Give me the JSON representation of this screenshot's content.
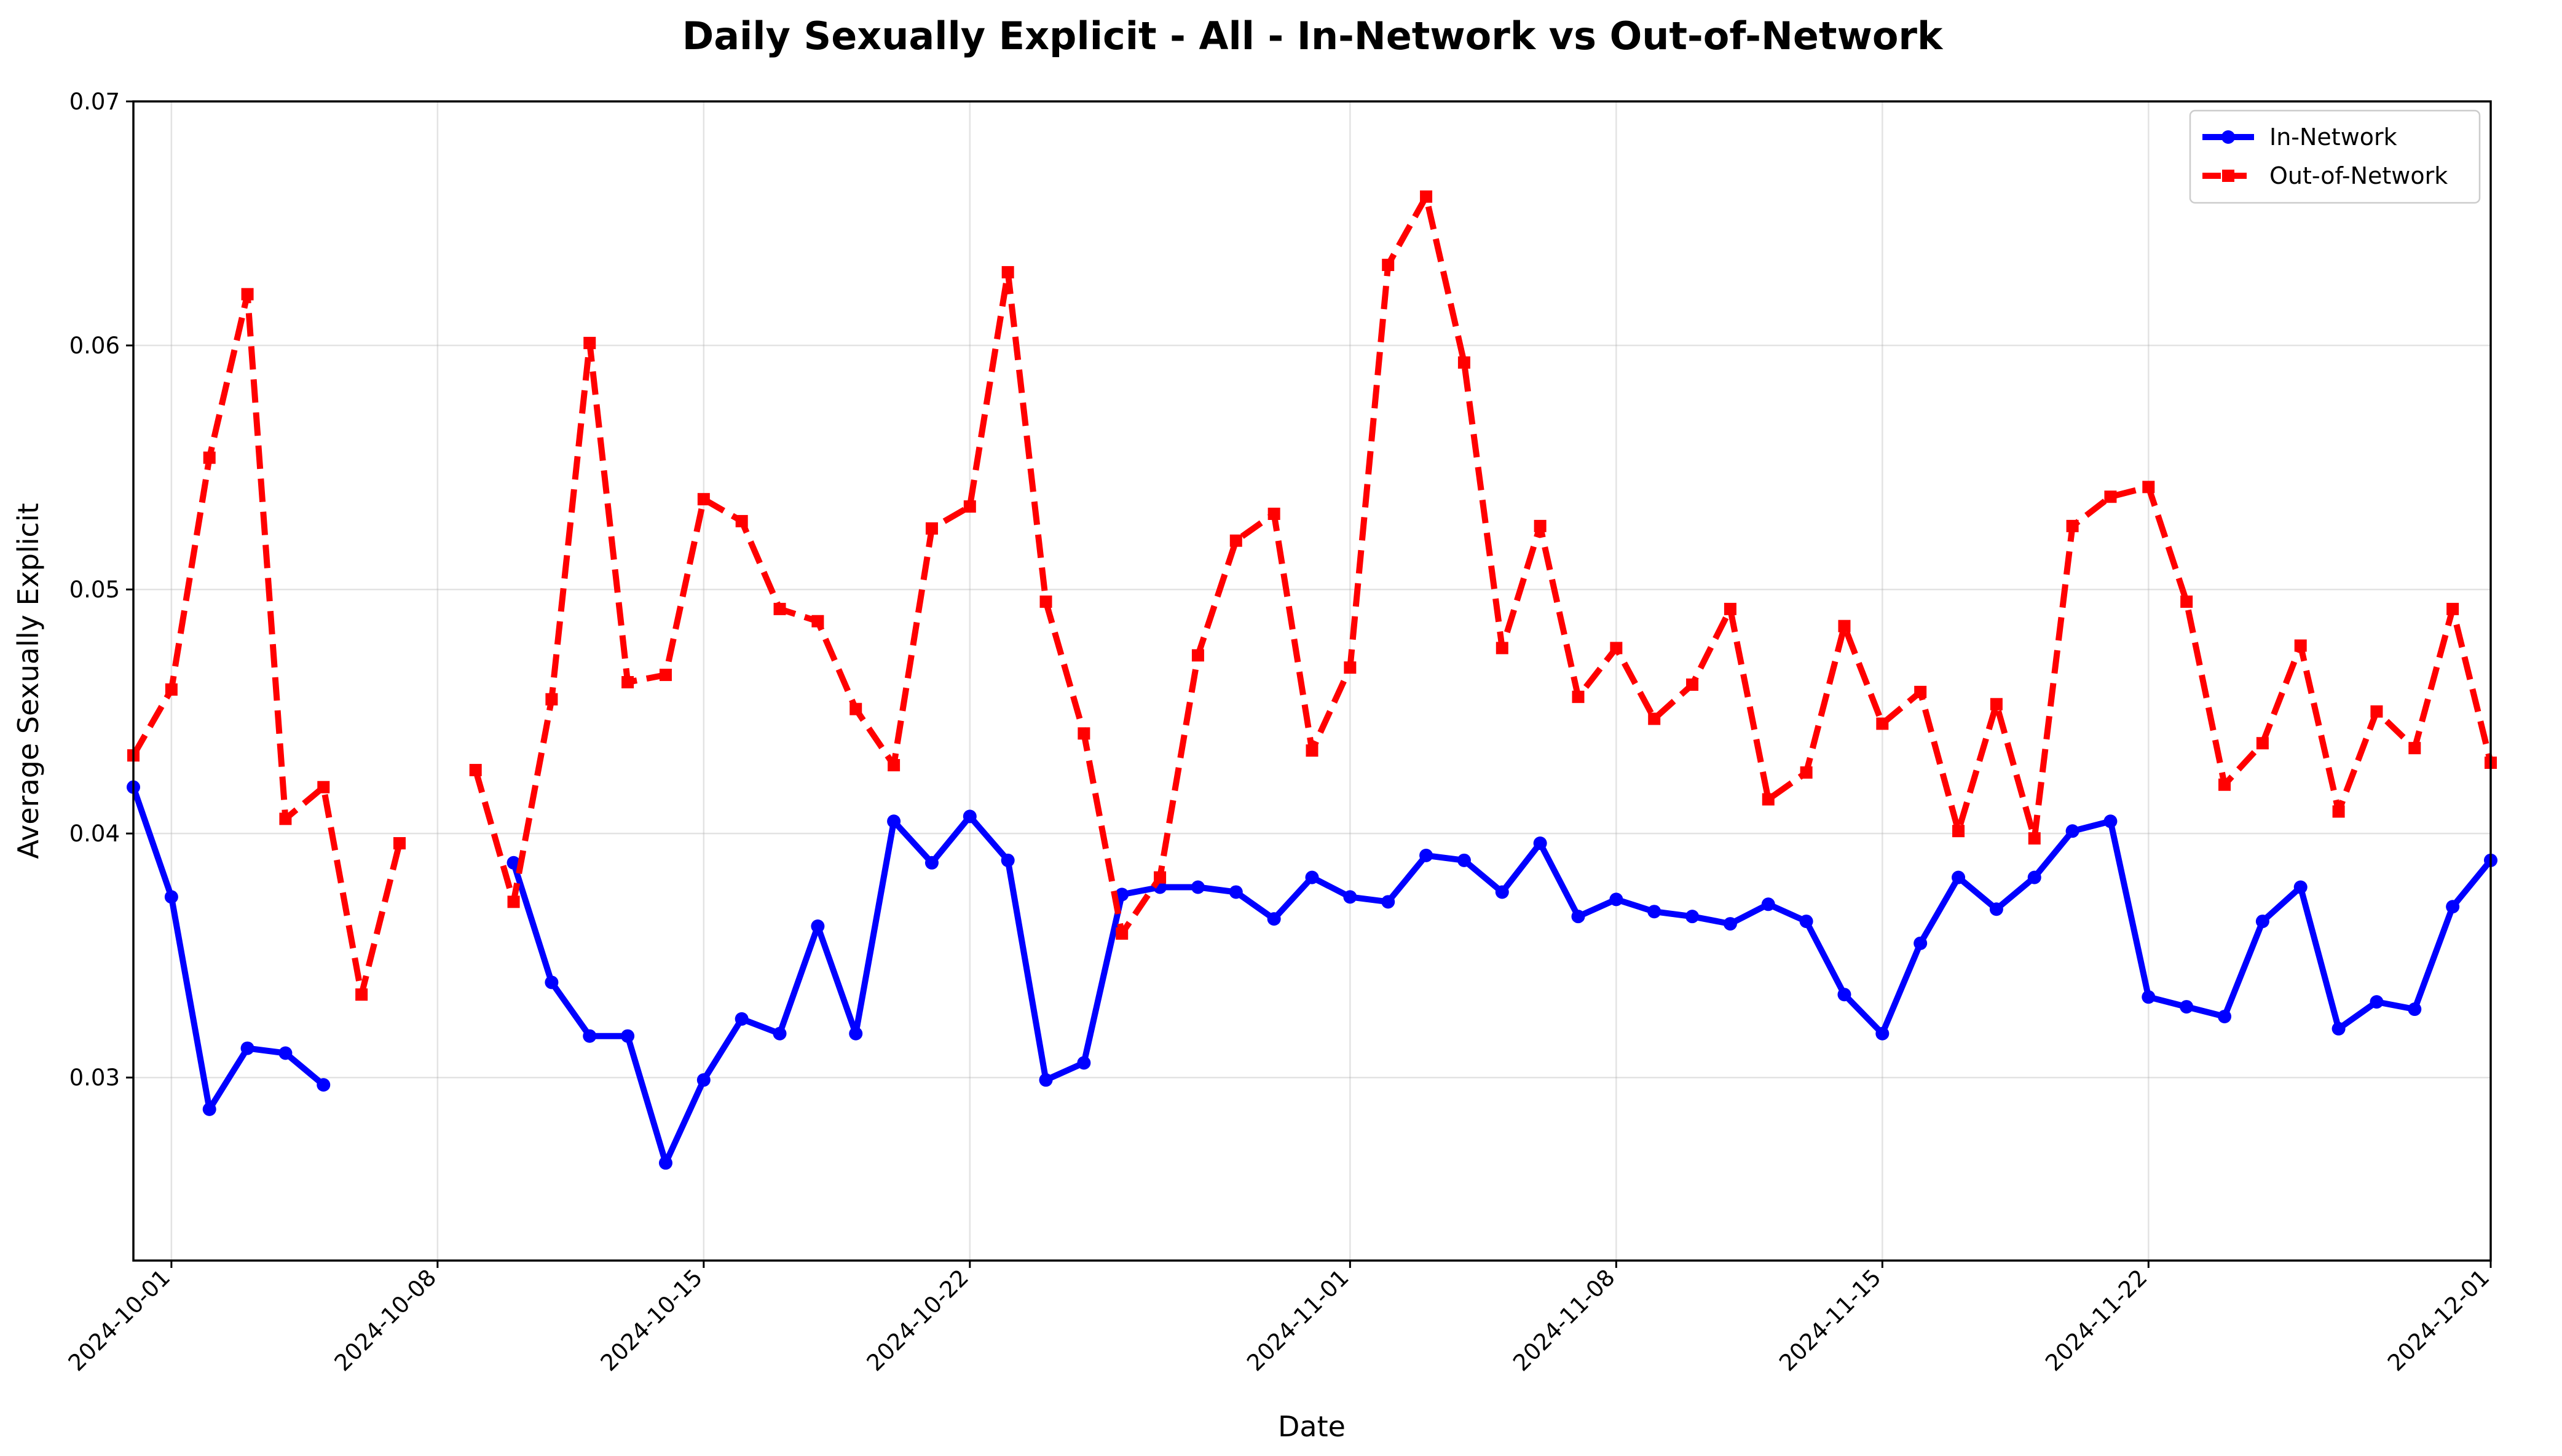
{
  "chart_data": {
    "type": "line",
    "title": "Daily Sexually Explicit - All - In-Network vs Out-of-Network",
    "xlabel": "Date",
    "ylabel": "Average Sexually Explicit",
    "x_range": [
      "2024-09-30",
      "2024-12-01"
    ],
    "ylim": [
      0.0225,
      0.07
    ],
    "yticks": [
      0.03,
      0.04,
      0.05,
      0.06,
      0.07
    ],
    "ytick_labels": [
      "0.03",
      "0.04",
      "0.05",
      "0.06",
      "0.07"
    ],
    "xticks": [
      "2024-10-01",
      "2024-10-08",
      "2024-10-15",
      "2024-10-22",
      "2024-11-01",
      "2024-11-08",
      "2024-11-15",
      "2024-11-22",
      "2024-12-01"
    ],
    "grid": true,
    "legend_position": "top-right",
    "series": [
      {
        "name": "In-Network",
        "color": "#0000ff",
        "style": "solid",
        "marker": "circle",
        "points": [
          [
            "2024-09-30",
            0.0419
          ],
          [
            "2024-10-01",
            0.0374
          ],
          [
            "2024-10-02",
            0.0287
          ],
          [
            "2024-10-03",
            0.0312
          ],
          [
            "2024-10-04",
            0.031
          ],
          [
            "2024-10-05",
            0.0297
          ],
          [
            "2024-10-06",
            null
          ],
          [
            "2024-10-07",
            null
          ],
          [
            "2024-10-08",
            null
          ],
          [
            "2024-10-09",
            null
          ],
          [
            "2024-10-10",
            0.0388
          ],
          [
            "2024-10-11",
            0.0339
          ],
          [
            "2024-10-12",
            0.0317
          ],
          [
            "2024-10-13",
            0.0317
          ],
          [
            "2024-10-14",
            0.0265
          ],
          [
            "2024-10-15",
            0.0299
          ],
          [
            "2024-10-16",
            0.0324
          ],
          [
            "2024-10-17",
            0.0318
          ],
          [
            "2024-10-18",
            0.0362
          ],
          [
            "2024-10-19",
            0.0318
          ],
          [
            "2024-10-20",
            0.0405
          ],
          [
            "2024-10-21",
            0.0388
          ],
          [
            "2024-10-22",
            0.0407
          ],
          [
            "2024-10-23",
            0.0389
          ],
          [
            "2024-10-24",
            0.0299
          ],
          [
            "2024-10-25",
            0.0306
          ],
          [
            "2024-10-26",
            0.0375
          ],
          [
            "2024-10-27",
            0.0378
          ],
          [
            "2024-10-28",
            0.0378
          ],
          [
            "2024-10-29",
            0.0376
          ],
          [
            "2024-10-30",
            0.0365
          ],
          [
            "2024-10-31",
            0.0382
          ],
          [
            "2024-11-01",
            0.0374
          ],
          [
            "2024-11-02",
            0.0372
          ],
          [
            "2024-11-03",
            0.0391
          ],
          [
            "2024-11-04",
            0.0389
          ],
          [
            "2024-11-05",
            0.0376
          ],
          [
            "2024-11-06",
            0.0396
          ],
          [
            "2024-11-07",
            0.0366
          ],
          [
            "2024-11-08",
            0.0373
          ],
          [
            "2024-11-09",
            0.0368
          ],
          [
            "2024-11-10",
            0.0366
          ],
          [
            "2024-11-11",
            0.0363
          ],
          [
            "2024-11-12",
            0.0371
          ],
          [
            "2024-11-13",
            0.0364
          ],
          [
            "2024-11-14",
            0.0334
          ],
          [
            "2024-11-15",
            0.0318
          ],
          [
            "2024-11-16",
            0.0355
          ],
          [
            "2024-11-17",
            0.0382
          ],
          [
            "2024-11-18",
            0.0369
          ],
          [
            "2024-11-19",
            0.0382
          ],
          [
            "2024-11-20",
            0.0401
          ],
          [
            "2024-11-21",
            0.0405
          ],
          [
            "2024-11-22",
            0.0333
          ],
          [
            "2024-11-23",
            0.0329
          ],
          [
            "2024-11-24",
            0.0325
          ],
          [
            "2024-11-25",
            0.0364
          ],
          [
            "2024-11-26",
            0.0378
          ],
          [
            "2024-11-27",
            0.032
          ],
          [
            "2024-11-28",
            0.0331
          ],
          [
            "2024-11-29",
            0.0328
          ],
          [
            "2024-11-30",
            0.037
          ],
          [
            "2024-12-01",
            0.0389
          ]
        ]
      },
      {
        "name": "Out-of-Network",
        "color": "#ff0000",
        "style": "dashed",
        "marker": "square",
        "points": [
          [
            "2024-09-30",
            0.0432
          ],
          [
            "2024-10-01",
            0.0459
          ],
          [
            "2024-10-02",
            0.0554
          ],
          [
            "2024-10-03",
            0.0621
          ],
          [
            "2024-10-04",
            0.0406
          ],
          [
            "2024-10-05",
            0.0419
          ],
          [
            "2024-10-06",
            0.0334
          ],
          [
            "2024-10-07",
            0.0396
          ],
          [
            "2024-10-08",
            null
          ],
          [
            "2024-10-09",
            0.0426
          ],
          [
            "2024-10-10",
            0.0372
          ],
          [
            "2024-10-11",
            0.0455
          ],
          [
            "2024-10-12",
            0.0601
          ],
          [
            "2024-10-13",
            0.0462
          ],
          [
            "2024-10-14",
            0.0465
          ],
          [
            "2024-10-15",
            0.0537
          ],
          [
            "2024-10-16",
            0.0528
          ],
          [
            "2024-10-17",
            0.0492
          ],
          [
            "2024-10-18",
            0.0487
          ],
          [
            "2024-10-19",
            0.0451
          ],
          [
            "2024-10-20",
            0.0428
          ],
          [
            "2024-10-21",
            0.0525
          ],
          [
            "2024-10-22",
            0.0534
          ],
          [
            "2024-10-23",
            0.063
          ],
          [
            "2024-10-24",
            0.0495
          ],
          [
            "2024-10-25",
            0.0441
          ],
          [
            "2024-10-26",
            0.0359
          ],
          [
            "2024-10-27",
            0.0382
          ],
          [
            "2024-10-28",
            0.0473
          ],
          [
            "2024-10-29",
            0.052
          ],
          [
            "2024-10-30",
            0.0531
          ],
          [
            "2024-10-31",
            0.0434
          ],
          [
            "2024-11-01",
            0.0468
          ],
          [
            "2024-11-02",
            0.0633
          ],
          [
            "2024-11-03",
            0.0661
          ],
          [
            "2024-11-04",
            0.0593
          ],
          [
            "2024-11-05",
            0.0476
          ],
          [
            "2024-11-06",
            0.0526
          ],
          [
            "2024-11-07",
            0.0456
          ],
          [
            "2024-11-08",
            0.0476
          ],
          [
            "2024-11-09",
            0.0447
          ],
          [
            "2024-11-10",
            0.0461
          ],
          [
            "2024-11-11",
            0.0492
          ],
          [
            "2024-11-12",
            0.0414
          ],
          [
            "2024-11-13",
            0.0425
          ],
          [
            "2024-11-14",
            0.0485
          ],
          [
            "2024-11-15",
            0.0445
          ],
          [
            "2024-11-16",
            0.0458
          ],
          [
            "2024-11-17",
            0.0401
          ],
          [
            "2024-11-18",
            0.0453
          ],
          [
            "2024-11-19",
            0.0398
          ],
          [
            "2024-11-20",
            0.0526
          ],
          [
            "2024-11-21",
            0.0538
          ],
          [
            "2024-11-22",
            0.0542
          ],
          [
            "2024-11-23",
            0.0495
          ],
          [
            "2024-11-24",
            0.042
          ],
          [
            "2024-11-25",
            0.0437
          ],
          [
            "2024-11-26",
            0.0477
          ],
          [
            "2024-11-27",
            0.0409
          ],
          [
            "2024-11-28",
            0.045
          ],
          [
            "2024-11-29",
            0.0435
          ],
          [
            "2024-11-30",
            0.0492
          ],
          [
            "2024-12-01",
            0.0429
          ]
        ]
      }
    ]
  }
}
